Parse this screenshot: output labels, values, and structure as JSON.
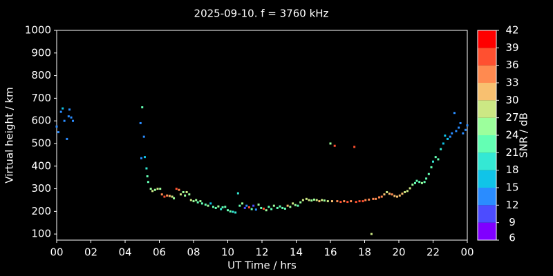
{
  "chart_data": {
    "type": "scatter",
    "title": "2025-09-10. f = 3760 kHz",
    "xlabel": "UT Time / hrs",
    "ylabel": "Virtual height / km",
    "colorbar_label": "SNR / dB",
    "xlim": [
      0,
      24
    ],
    "ylim": [
      73,
      1000
    ],
    "xticks": [
      {
        "value": 0,
        "label": "00"
      },
      {
        "value": 2,
        "label": "02"
      },
      {
        "value": 4,
        "label": "04"
      },
      {
        "value": 6,
        "label": "06"
      },
      {
        "value": 8,
        "label": "08"
      },
      10,
      12,
      14,
      16,
      18,
      20,
      22,
      {
        "value": 24,
        "label": "00"
      }
    ],
    "yticks": [
      100,
      200,
      300,
      400,
      500,
      600,
      700,
      800,
      900,
      1000
    ],
    "clim": [
      6,
      42
    ],
    "cticks": [
      6,
      9,
      12,
      15,
      18,
      21,
      24,
      27,
      30,
      33,
      36,
      39,
      42
    ],
    "colormap": [
      "#8000ff",
      "#4c4cff",
      "#2a8cff",
      "#10c4e8",
      "#34e8d4",
      "#64ffb4",
      "#9cff9c",
      "#cce884",
      "#f8c070",
      "#ff8a50",
      "#ff5030",
      "#ff0000"
    ],
    "x": [
      0.0,
      0.1,
      0.25,
      0.35,
      0.45,
      0.6,
      0.7,
      0.75,
      0.85,
      0.95,
      4.9,
      4.95,
      5.0,
      5.1,
      5.15,
      5.25,
      5.3,
      5.35,
      5.5,
      5.6,
      5.75,
      5.9,
      6.05,
      6.15,
      6.3,
      6.45,
      6.6,
      6.75,
      6.85,
      7.0,
      7.15,
      7.25,
      7.4,
      7.5,
      7.6,
      7.75,
      7.85,
      8.0,
      8.15,
      8.25,
      8.4,
      8.5,
      8.7,
      8.85,
      9.0,
      9.15,
      9.3,
      9.45,
      9.6,
      9.7,
      9.85,
      10.0,
      10.15,
      10.3,
      10.45,
      10.6,
      10.7,
      10.85,
      11.0,
      11.1,
      11.25,
      11.4,
      11.5,
      11.65,
      11.8,
      11.95,
      12.1,
      12.25,
      12.4,
      12.55,
      12.7,
      12.9,
      13.05,
      13.2,
      13.35,
      13.5,
      13.65,
      13.8,
      13.95,
      14.1,
      14.25,
      14.4,
      14.6,
      14.75,
      14.9,
      15.05,
      15.2,
      15.35,
      15.5,
      15.65,
      15.85,
      16.0,
      16.1,
      16.25,
      16.4,
      16.6,
      16.8,
      17.0,
      17.2,
      17.4,
      17.5,
      17.7,
      17.9,
      18.05,
      18.25,
      18.4,
      18.5,
      18.65,
      18.85,
      19.0,
      19.15,
      19.3,
      19.45,
      19.6,
      19.75,
      19.9,
      20.05,
      20.2,
      20.35,
      20.5,
      20.65,
      20.8,
      20.95,
      21.05,
      21.2,
      21.35,
      21.5,
      21.6,
      21.75,
      21.9,
      22.0,
      22.15,
      22.3,
      22.45,
      22.6,
      22.7,
      22.85,
      23.0,
      23.1,
      23.25,
      23.35,
      23.5,
      23.6,
      23.75,
      23.9,
      24.0
    ],
    "values": [
      575,
      550,
      640,
      655,
      600,
      520,
      620,
      650,
      615,
      600,
      590,
      435,
      660,
      530,
      440,
      390,
      355,
      330,
      300,
      290,
      295,
      300,
      300,
      275,
      265,
      270,
      268,
      265,
      258,
      300,
      295,
      275,
      285,
      270,
      285,
      275,
      250,
      245,
      250,
      240,
      245,
      235,
      230,
      225,
      235,
      220,
      215,
      222,
      210,
      218,
      220,
      205,
      200,
      198,
      195,
      280,
      225,
      235,
      215,
      225,
      218,
      210,
      225,
      208,
      230,
      215,
      212,
      205,
      220,
      210,
      225,
      215,
      222,
      215,
      212,
      225,
      220,
      235,
      228,
      225,
      240,
      250,
      255,
      250,
      248,
      252,
      250,
      245,
      250,
      248,
      245,
      500,
      245,
      490,
      245,
      242,
      245,
      242,
      245,
      485,
      242,
      245,
      245,
      250,
      252,
      100,
      255,
      255,
      262,
      265,
      275,
      285,
      278,
      275,
      268,
      265,
      270,
      278,
      285,
      290,
      302,
      318,
      325,
      335,
      330,
      325,
      330,
      345,
      365,
      395,
      420,
      440,
      430,
      475,
      500,
      535,
      520,
      530,
      545,
      635,
      555,
      570,
      590,
      545,
      560,
      580
    ],
    "snr": [
      12,
      12,
      12,
      15,
      12,
      12,
      12,
      12,
      12,
      12,
      12,
      12,
      21,
      12,
      15,
      18,
      21,
      21,
      24,
      27,
      24,
      27,
      24,
      33,
      36,
      33,
      30,
      27,
      24,
      36,
      33,
      27,
      24,
      24,
      27,
      24,
      27,
      24,
      24,
      21,
      24,
      21,
      21,
      24,
      15,
      21,
      21,
      24,
      18,
      21,
      21,
      21,
      21,
      18,
      18,
      18,
      21,
      24,
      9,
      12,
      36,
      21,
      9,
      12,
      24,
      21,
      36,
      24,
      21,
      21,
      24,
      21,
      21,
      21,
      21,
      30,
      24,
      27,
      24,
      21,
      24,
      27,
      27,
      27,
      24,
      24,
      27,
      30,
      27,
      24,
      27,
      24,
      30,
      36,
      33,
      36,
      33,
      36,
      33,
      36,
      36,
      36,
      36,
      33,
      33,
      27,
      33,
      33,
      33,
      33,
      30,
      27,
      30,
      33,
      30,
      30,
      30,
      30,
      27,
      27,
      27,
      24,
      21,
      21,
      21,
      24,
      21,
      21,
      21,
      21,
      18,
      21,
      21,
      18,
      15,
      15,
      15,
      12,
      12,
      12,
      12,
      12,
      12,
      12,
      12,
      12
    ]
  }
}
